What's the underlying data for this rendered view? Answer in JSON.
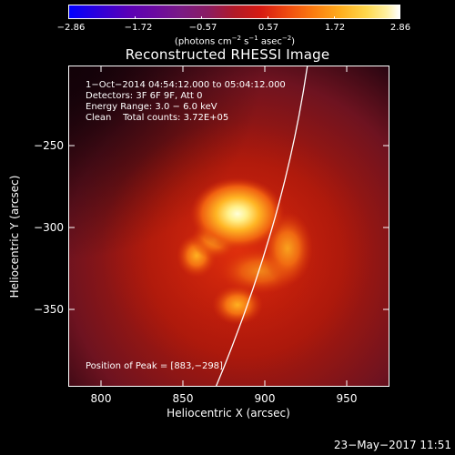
{
  "colorbar": {
    "ticks": [
      "−2.86",
      "−1.72",
      "−0.57",
      "0.57",
      "1.72",
      "2.86"
    ],
    "units_label": "(photons cm",
    "units_exp1": "−2",
    "units_mid": " s",
    "units_exp2": "−1",
    "units_mid2": " asec",
    "units_exp3": "−2",
    "units_end": ")"
  },
  "image": {
    "title": "Reconstructed RHESSI Image",
    "time_range": "1−Oct−2014 04:54:12.000 to 05:04:12.000",
    "detectors": "Detectors: 3F 6F 9F, Att 0",
    "energy_range": "Energy Range: 3.0 − 6.0 keV",
    "method": "Clean    Total counts: 3.72E+05",
    "peak_position": "Position of Peak = [883,−298]"
  },
  "axes": {
    "xlabel": "Heliocentric X (arcsec)",
    "ylabel": "Heliocentric Y (arcsec)",
    "xticks": [
      "800",
      "850",
      "900",
      "950"
    ],
    "yticks": [
      "−250",
      "−300",
      "−350"
    ],
    "x_tick_values": [
      800,
      850,
      900,
      950
    ],
    "y_tick_values": [
      -250,
      -300,
      -350
    ],
    "xlim": [
      781,
      975
    ],
    "ylim": [
      -394,
      -200
    ]
  },
  "footer": {
    "timestamp": "23−May−2017 11:51"
  },
  "colors": {
    "background": "#000000",
    "limb_line": "#ffffff"
  }
}
